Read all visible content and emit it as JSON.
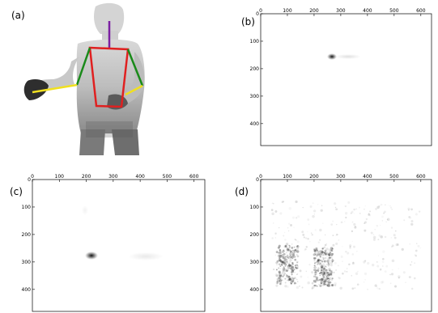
{
  "labels": {
    "a": "(a)",
    "b": "(b)",
    "c": "(c)",
    "d": "(d)"
  },
  "axes": {
    "x_ticks": [
      "0",
      "100",
      "200",
      "300",
      "400",
      "500",
      "600"
    ],
    "y_ticks": [
      "0",
      "100",
      "200",
      "300",
      "400"
    ]
  },
  "colors": {
    "spine": "#7b1fa2",
    "torso": "#e02020",
    "arm_upper": "#1a8a1a",
    "arm_lower": "#f0e020"
  }
}
